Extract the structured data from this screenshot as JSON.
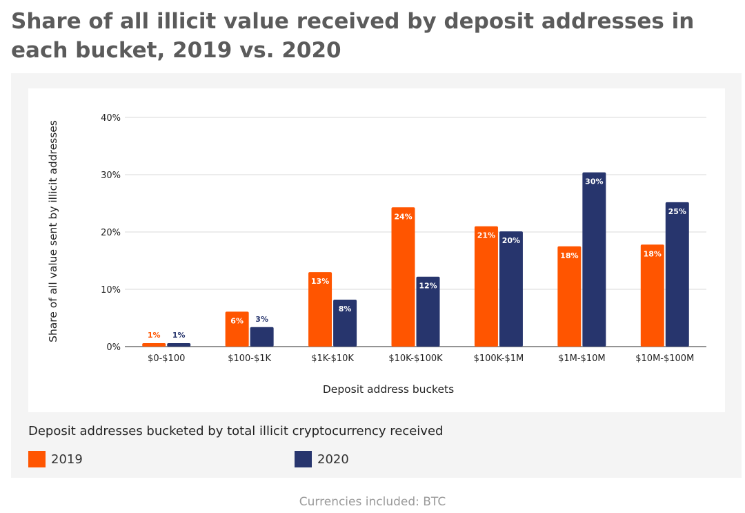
{
  "title": "Share of all illicit value received by deposit addresses in each bucket, 2019 vs. 2020",
  "legend": {
    "title": "Deposit addresses bucketed by total illicit cryptocurrency received",
    "items": [
      {
        "label": "2019",
        "color": "#ff5500"
      },
      {
        "label": "2020",
        "color": "#27356d"
      }
    ]
  },
  "footnote": "Currencies included: BTC",
  "chart_data": {
    "type": "bar",
    "title": "",
    "xlabel": "Deposit address buckets",
    "ylabel": "Share of all value sent by illicit addresses",
    "ylim": [
      0,
      40
    ],
    "yticks": [
      "0%",
      "10%",
      "20%",
      "30%",
      "40%"
    ],
    "grid": true,
    "categories": [
      "$0-$100",
      "$100-$1K",
      "$1K-$10K",
      "$10K-$100K",
      "$100K-$1M",
      "$1M-$10M",
      "$10M-$100M"
    ],
    "series": [
      {
        "name": "2019",
        "color": "#ff5500",
        "values": [
          0.6,
          6.1,
          13,
          24.3,
          21,
          17.5,
          17.8
        ],
        "labels": [
          "1%",
          "6%",
          "13%",
          "24%",
          "21%",
          "18%",
          "18%"
        ]
      },
      {
        "name": "2020",
        "color": "#27356d",
        "values": [
          0.6,
          3.4,
          8.2,
          12.2,
          20.1,
          30.4,
          25.2
        ],
        "labels": [
          "1%",
          "3%",
          "8%",
          "12%",
          "20%",
          "30%",
          "25%"
        ]
      }
    ]
  }
}
